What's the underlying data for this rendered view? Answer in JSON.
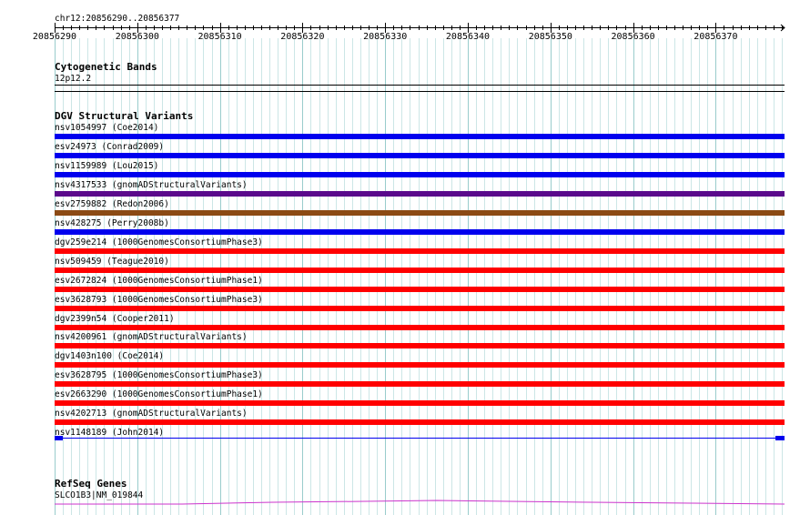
{
  "ruler": {
    "location": "chr12:20856290..20856377",
    "ticks": [
      "20856290",
      "20856300",
      "20856310",
      "20856320",
      "20856330",
      "20856340",
      "20856350",
      "20856360",
      "20856370"
    ]
  },
  "tracks": {
    "cytoband": {
      "title": "Cytogenetic Bands",
      "band_label": "12p12.2"
    },
    "dgv": {
      "title": "DGV Structural Variants",
      "features": [
        {
          "label": "nsv1054997 (Coe2014)",
          "color": "#0000ee"
        },
        {
          "label": "esv24973 (Conrad2009)",
          "color": "#0000ee"
        },
        {
          "label": "nsv1159989 (Lou2015)",
          "color": "#0000ee"
        },
        {
          "label": "nsv4317533 (gnomADStructuralVariants)",
          "color": "#5a0a8c"
        },
        {
          "label": "esv2759882 (Redon2006)",
          "color": "#8b4a14"
        },
        {
          "label": "nsv428275 (Perry2008b)",
          "color": "#0000ee"
        },
        {
          "label": "dgv259e214 (1000GenomesConsortiumPhase3)",
          "color": "#ff0000"
        },
        {
          "label": "nsv509459 (Teague2010)",
          "color": "#ff0000"
        },
        {
          "label": "esv2672824 (1000GenomesConsortiumPhase1)",
          "color": "#ff0000"
        },
        {
          "label": "esv3628793 (1000GenomesConsortiumPhase3)",
          "color": "#ff0000"
        },
        {
          "label": "dgv2399n54 (Cooper2011)",
          "color": "#ff0000"
        },
        {
          "label": "nsv4200961 (gnomADStructuralVariants)",
          "color": "#ff0000"
        },
        {
          "label": "dgv1403n100 (Coe2014)",
          "color": "#ff0000"
        },
        {
          "label": "esv3628795 (1000GenomesConsortiumPhase3)",
          "color": "#ff0000"
        },
        {
          "label": "esv2663290 (1000GenomesConsortiumPhase1)",
          "color": "#ff0000"
        },
        {
          "label": "nsv4202713 (gnomADStructuralVariants)",
          "color": "#ff0000"
        },
        {
          "label": "nsv1148189 (John2014)",
          "color": "#0000ee",
          "style": "split"
        }
      ]
    },
    "refseq": {
      "title": "RefSeq Genes",
      "gene_label": "SLCO1B3|NM_019844",
      "color": "#cc33cc"
    }
  },
  "colors": {
    "grid_major": "#99cccc",
    "grid_minor": "#cce6e6"
  }
}
